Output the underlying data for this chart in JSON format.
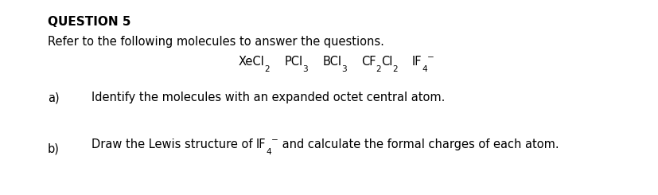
{
  "background_color": "#ffffff",
  "title": "QUESTION 5",
  "title_fontsize": 11,
  "title_fontweight": "bold",
  "intro_text": "Refer to the following molecules to answer the questions.",
  "intro_fontsize": 10.5,
  "molecules_fontsize": 10.5,
  "qa_fontsize": 10.5,
  "a_label": "a)",
  "a_text": "Identify the molecules with an expanded octet central atom.",
  "b_label": "b)",
  "b_text_before": "Draw the Lewis structure of ",
  "b_text_after": " and calculate the formal charges of each atom."
}
